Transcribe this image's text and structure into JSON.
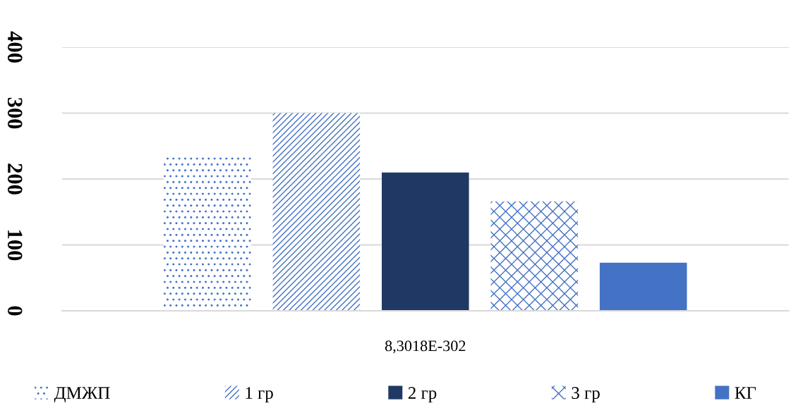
{
  "chart_data": {
    "type": "bar",
    "categories": [
      "8,3018E-302"
    ],
    "series": [
      {
        "name": "ДМЖП",
        "color": "#4472c4",
        "values": [
          235
        ]
      },
      {
        "name": "1 гр",
        "color": "#4472c4",
        "values": [
          300
        ]
      },
      {
        "name": "2 гр",
        "color": "#203864",
        "values": [
          210
        ]
      },
      {
        "name": "3 гр",
        "color": "#4472c4",
        "values": [
          166
        ]
      },
      {
        "name": "КГ",
        "color": "#4472c4",
        "values": [
          73
        ]
      }
    ],
    "ylim": [
      0,
      400
    ],
    "yticks": [
      0,
      100,
      200,
      300,
      400
    ],
    "grid": "y",
    "legend": "bottom"
  }
}
